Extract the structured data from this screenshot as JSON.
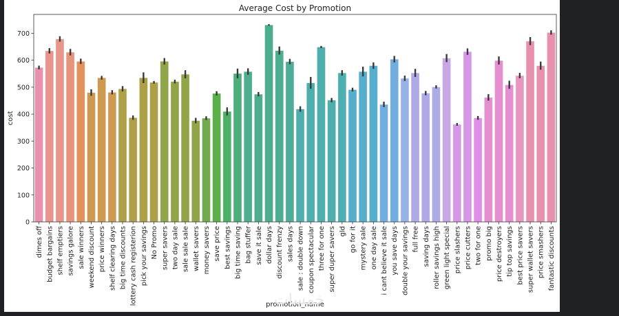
{
  "chart_data": {
    "type": "bar",
    "title": "Average Cost by Promotion",
    "xlabel": "promotion_name",
    "ylabel": "cost",
    "ylim": [
      0,
      770
    ],
    "yticks": [
      0,
      100,
      200,
      300,
      400,
      500,
      600,
      700
    ],
    "grid": false,
    "legend": null,
    "error_bars": true,
    "categories": [
      "dimes off",
      "budget bargains",
      "shelf emptiers",
      "savings galore",
      "sale winners",
      "weekend discount",
      "price winners",
      "shelf clearing days",
      "big time discounts",
      "lottery cash registerion",
      "pick your savings",
      "No Promo",
      "super savers",
      "two day sale",
      "sale sale sale",
      "wallet savers",
      "money savers",
      "save price",
      "best savings",
      "big time saving",
      "bag stuffer",
      "save it sale",
      "dollar days",
      "discount frenzy",
      "sales days",
      "sale : double down",
      "coupon spectacular",
      "three for one",
      "super duper savers",
      "gld",
      "go for it",
      "mystery sale",
      "one day sale",
      "i cant believe it sale",
      "you save days",
      "double your savings",
      "full free",
      "saving days",
      "roller savings high",
      "green light special",
      "price slashers",
      "price cutters",
      "two for one",
      "promo big",
      "price destroyers",
      "tip top savings",
      "best price savers",
      "super wallet savers",
      "price smashers",
      "fantastic discounts"
    ],
    "values": [
      573,
      635,
      679,
      630,
      596,
      480,
      535,
      481,
      494,
      387,
      535,
      518,
      596,
      521,
      548,
      376,
      385,
      477,
      410,
      551,
      558,
      474,
      731,
      636,
      595,
      419,
      516,
      649,
      452,
      553,
      491,
      558,
      580,
      436,
      604,
      533,
      553,
      478,
      501,
      608,
      362,
      632,
      386,
      462,
      599,
      509,
      543,
      671,
      580,
      703
    ],
    "errors": [
      7,
      10,
      10,
      12,
      10,
      12,
      7,
      8,
      10,
      8,
      20,
      5,
      12,
      7,
      15,
      10,
      7,
      8,
      15,
      18,
      12,
      8,
      3,
      15,
      10,
      10,
      22,
      4,
      8,
      10,
      7,
      18,
      12,
      10,
      12,
      10,
      15,
      8,
      6,
      15,
      5,
      12,
      7,
      12,
      15,
      15,
      10,
      15,
      15,
      8
    ],
    "colors": [
      "#e891ae",
      "#e8938f",
      "#e8968c",
      "#e6957a",
      "#e2935c",
      "#cd9a50",
      "#cd9a50",
      "#cc9a50",
      "#aea048",
      "#ada048",
      "#ada048",
      "#ada048",
      "#90a548",
      "#90a548",
      "#90a548",
      "#90a548",
      "#72aa4d",
      "#5bb04b",
      "#4db068",
      "#4dae7c",
      "#4dad8e",
      "#4dad8e",
      "#4dad8e",
      "#4dad8e",
      "#4dad97",
      "#4daeac",
      "#4daeac",
      "#4daeac",
      "#4daeac",
      "#4dafb0",
      "#54aecc",
      "#54aecc",
      "#54aecc",
      "#72ade0",
      "#72ade0",
      "#97b2e6",
      "#aeaae8",
      "#aeaae8",
      "#aeaae8",
      "#c9a6e6",
      "#d697e6",
      "#d697e6",
      "#e08fe6",
      "#e68fd0",
      "#e68fd0",
      "#e68fd0",
      "#e895c2",
      "#e891ae",
      "#e891ae",
      "#e891ae"
    ]
  },
  "watermark": "خمسات"
}
